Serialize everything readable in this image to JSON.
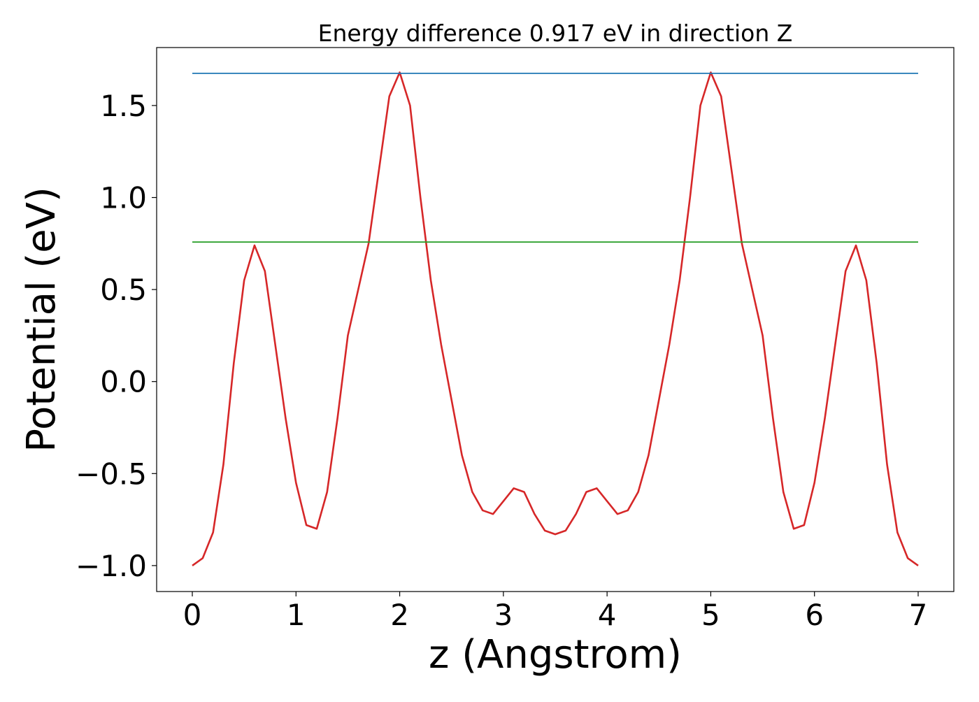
{
  "chart_data": {
    "type": "line",
    "title": "Energy difference 0.917 eV in direction Z",
    "x_label": "z (Angstrom)",
    "y_label": "Potential (eV)",
    "xlim": [
      -0.344,
      7.344
    ],
    "ylim": [
      -1.141,
      1.815
    ],
    "xticks": [
      0,
      1,
      2,
      3,
      4,
      5,
      6,
      7
    ],
    "yticks": [
      {
        "value": -1.0,
        "label": "−1.0"
      },
      {
        "value": -0.5,
        "label": "−0.5"
      },
      {
        "value": 0.0,
        "label": "0.0"
      },
      0.5,
      {
        "value": 1.0,
        "label": "1.0"
      },
      1.5
    ],
    "series": [
      {
        "color": "#d62728",
        "x": [
          0.0,
          0.1,
          0.2,
          0.3,
          0.4,
          0.5,
          0.6,
          0.7,
          0.8,
          0.9,
          1.0,
          1.1,
          1.2,
          1.3,
          1.4,
          1.5,
          1.6,
          1.7,
          1.8,
          1.9,
          2.0,
          2.1,
          2.2,
          2.3,
          2.4,
          2.5,
          2.6,
          2.7,
          2.8,
          2.9,
          3.0,
          3.1,
          3.2,
          3.3,
          3.4,
          3.5,
          3.6,
          3.7,
          3.8,
          3.9,
          4.0,
          4.1,
          4.2,
          4.3,
          4.4,
          4.5,
          4.6,
          4.7,
          4.8,
          4.9,
          5.0,
          5.1,
          5.2,
          5.3,
          5.4,
          5.5,
          5.6,
          5.7,
          5.8,
          5.9,
          6.0,
          6.1,
          6.2,
          6.3,
          6.4,
          6.5,
          6.6,
          6.7,
          6.8,
          6.9,
          7.0
        ],
        "values": [
          -1.0,
          -0.96,
          -0.82,
          -0.45,
          0.1,
          0.55,
          0.74,
          0.6,
          0.2,
          -0.2,
          -0.55,
          -0.78,
          -0.8,
          -0.6,
          -0.2,
          0.25,
          0.5,
          0.75,
          1.15,
          1.55,
          1.68,
          1.5,
          1.0,
          0.55,
          0.2,
          -0.1,
          -0.4,
          -0.6,
          -0.7,
          -0.72,
          -0.65,
          -0.58,
          -0.6,
          -0.72,
          -0.81,
          -0.83,
          -0.81,
          -0.72,
          -0.6,
          -0.58,
          -0.65,
          -0.72,
          -0.7,
          -0.6,
          -0.4,
          -0.1,
          0.2,
          0.55,
          1.0,
          1.5,
          1.68,
          1.55,
          1.15,
          0.75,
          0.5,
          0.25,
          -0.2,
          -0.6,
          -0.8,
          -0.78,
          -0.55,
          -0.2,
          0.2,
          0.6,
          0.74,
          0.55,
          0.1,
          -0.45,
          -0.82,
          -0.96,
          -1.0
        ]
      },
      {
        "color": "#1f77b4",
        "x": [
          0,
          7
        ],
        "values": [
          1.675,
          1.675
        ]
      },
      {
        "color": "#2ca02c",
        "x": [
          0,
          7
        ],
        "values": [
          0.758,
          0.758
        ]
      }
    ]
  }
}
